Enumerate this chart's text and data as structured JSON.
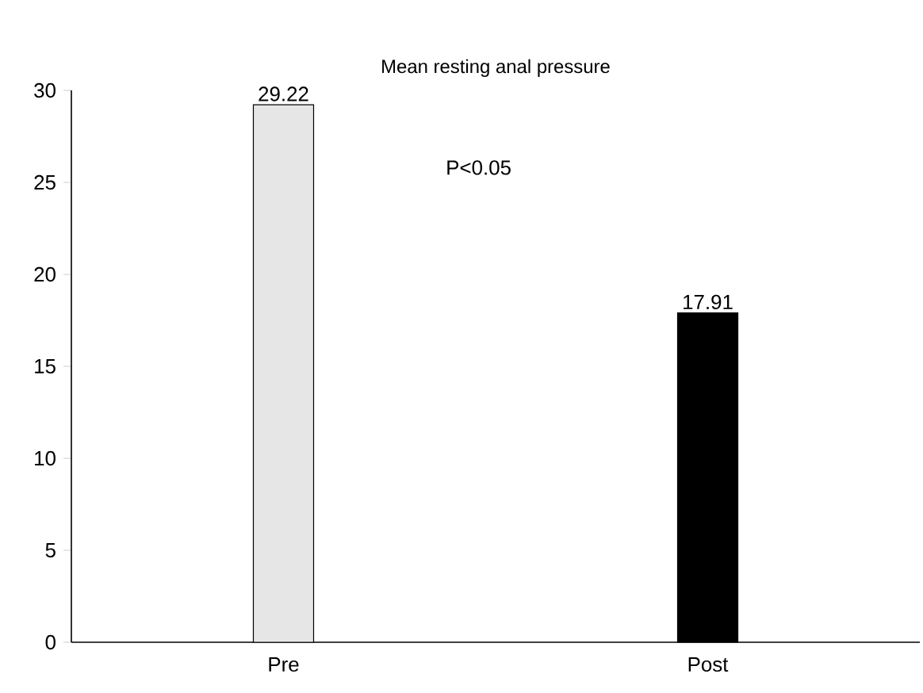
{
  "chart_data": {
    "type": "bar",
    "title": "Mean resting anal pressure",
    "categories": [
      "Pre",
      "Post"
    ],
    "values": [
      29.22,
      17.91
    ],
    "colors": [
      "#e6e6e6",
      "#000000"
    ],
    "ylim": [
      0,
      30
    ],
    "yticks": [
      0,
      5,
      10,
      15,
      20,
      25,
      30
    ],
    "data_labels": true,
    "annotations": [
      "P<0.05"
    ]
  }
}
